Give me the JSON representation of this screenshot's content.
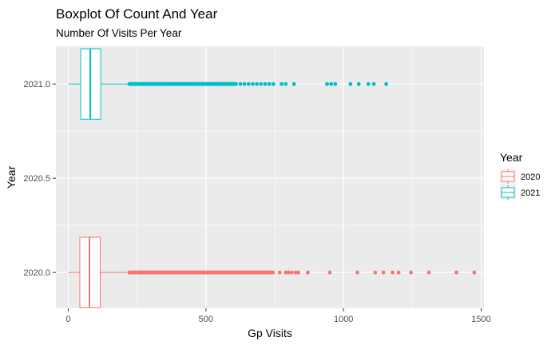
{
  "chart_data": {
    "type": "boxplot",
    "orientation": "horizontal",
    "title": "Boxplot Of Count And Year",
    "subtitle": "Number Of Visits Per Year",
    "xlabel": "Gp Visits",
    "ylabel": "Year",
    "xlim": [
      -45,
      1510
    ],
    "ylim": [
      2019.81,
      2021.2
    ],
    "x_ticks": [
      0,
      500,
      1000,
      1500
    ],
    "y_ticks": [
      2020.0,
      2020.5,
      2021.0
    ],
    "y_tick_labels": [
      "2020.0",
      "2020.5",
      "2021.0"
    ],
    "grid": true,
    "legend": {
      "title": "Year",
      "position": "right"
    },
    "series": [
      {
        "name": "2020",
        "color": "#F8766D",
        "y": 2020.0,
        "box_half_height": 0.187,
        "whisker_low": 0,
        "q1": 42,
        "median": 77,
        "q3": 116,
        "whisker_high": 222,
        "dense_outlier_range": [
          222,
          745
        ],
        "outliers": [
          768,
          790,
          800,
          812,
          826,
          836,
          870,
          950,
          1050,
          1115,
          1145,
          1178,
          1200,
          1245,
          1310,
          1410,
          1475
        ]
      },
      {
        "name": "2021",
        "color": "#00BFC4",
        "y": 2021.0,
        "box_half_height": 0.187,
        "whisker_low": 0,
        "q1": 45,
        "median": 80,
        "q3": 118,
        "whisker_high": 222,
        "dense_outlier_range": [
          222,
          610
        ],
        "outliers": [
          625,
          640,
          655,
          670,
          685,
          700,
          715,
          730,
          745,
          775,
          790,
          820,
          940,
          955,
          970,
          1025,
          1055,
          1090,
          1110,
          1155
        ]
      }
    ]
  }
}
